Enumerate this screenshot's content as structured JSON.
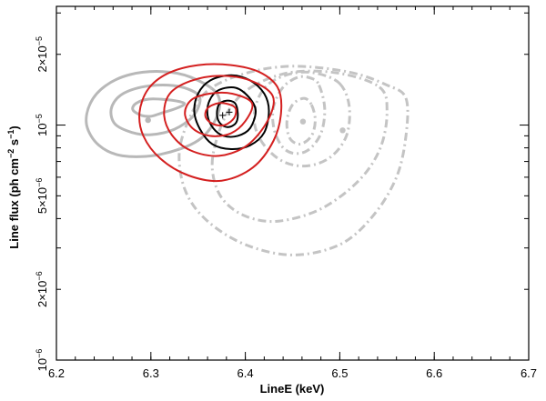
{
  "chart_data": {
    "type": "scatter",
    "title": "",
    "xlabel": "LineE (keV)",
    "ylabel": {
      "prefix": "Line flux (ph cm",
      "exp1": "−2",
      "mid": " s",
      "exp2": "−1",
      "suffix": ")"
    },
    "x_scale": "linear",
    "y_scale": "log",
    "xlim": [
      6.2,
      6.7
    ],
    "ylim": [
      1e-06,
      3.2e-05
    ],
    "x_ticks": [
      {
        "value": 6.2,
        "label": "6.2"
      },
      {
        "value": 6.3,
        "label": "6.3"
      },
      {
        "value": 6.4,
        "label": "6.4"
      },
      {
        "value": 6.5,
        "label": "6.5"
      },
      {
        "value": 6.6,
        "label": "6.6"
      },
      {
        "value": 6.7,
        "label": "6.7"
      }
    ],
    "y_ticks": [
      {
        "value": 1e-06,
        "mant": "",
        "exp": "−6",
        "label": "10−6"
      },
      {
        "value": 2e-06,
        "mant": "2×",
        "exp": "−6",
        "label": "2×10−6"
      },
      {
        "value": 5e-06,
        "mant": "5×",
        "exp": "−6",
        "label": "5×10−6"
      },
      {
        "value": 1e-05,
        "mant": "",
        "exp": "−5",
        "label": "10−5"
      },
      {
        "value": 2e-05,
        "mant": "2×",
        "exp": "−5",
        "label": "2×10−5"
      }
    ],
    "series": [
      {
        "style": "solid",
        "color": "#b8b8b8",
        "width": 3,
        "best_fit": {
          "marker": "dot",
          "x": 6.297,
          "y": 1.05e-05
        },
        "contours": [
          [
            [
              6.335,
              1.22e-05
            ],
            [
              6.326,
              1.175e-05
            ],
            [
              6.31,
              1.12e-05
            ],
            [
              6.3,
              1.09e-05
            ],
            [
              6.29,
              1.1e-05
            ],
            [
              6.281,
              1.16e-05
            ],
            [
              6.284,
              1.235e-05
            ],
            [
              6.298,
              1.29e-05
            ],
            [
              6.318,
              1.28e-05
            ],
            [
              6.333,
              1.25e-05
            ]
          ],
          [
            [
              6.352,
              1.3e-05
            ],
            [
              6.345,
              1.095e-05
            ],
            [
              6.325,
              9.6e-06
            ],
            [
              6.3,
              9.1e-06
            ],
            [
              6.28,
              9.3e-06
            ],
            [
              6.262,
              1.01e-05
            ],
            [
              6.258,
              1.17e-05
            ],
            [
              6.268,
              1.34e-05
            ],
            [
              6.29,
              1.45e-05
            ],
            [
              6.318,
              1.48e-05
            ],
            [
              6.34,
              1.42e-05
            ]
          ],
          [
            [
              6.37,
              1.36e-05
            ],
            [
              6.37,
              1.09e-05
            ],
            [
              6.35,
              8.6e-06
            ],
            [
              6.31,
              7.5e-06
            ],
            [
              6.27,
              7.4e-06
            ],
            [
              6.245,
              8.2e-06
            ],
            [
              6.232,
              1e-05
            ],
            [
              6.236,
              1.24e-05
            ],
            [
              6.252,
              1.47e-05
            ],
            [
              6.278,
              1.64e-05
            ],
            [
              6.312,
              1.69e-05
            ],
            [
              6.342,
              1.6e-05
            ]
          ]
        ]
      },
      {
        "style": "dashdot",
        "color": "#c4c4c4",
        "width": 3,
        "best_fit": {
          "marker": "dot",
          "x": 6.461,
          "y": 1.035e-05
        },
        "best_fit_2": {
          "marker": "dot",
          "x": 6.503,
          "y": 9.5e-06
        },
        "contours": [
          [
            [
              6.47,
              1.22e-05
            ],
            [
              6.474,
              1.05e-05
            ],
            [
              6.47,
              9e-06
            ],
            [
              6.458,
              8.3e-06
            ],
            [
              6.447,
              8.8e-06
            ],
            [
              6.444,
              1.04e-05
            ],
            [
              6.45,
              1.22e-05
            ],
            [
              6.462,
              1.3e-05
            ]
          ],
          [
            [
              6.478,
              1.48e-05
            ],
            [
              6.484,
              1.18e-05
            ],
            [
              6.48,
              9.2e-06
            ],
            [
              6.466,
              7.8e-06
            ],
            [
              6.45,
              7.6e-06
            ],
            [
              6.438,
              8.2e-06
            ],
            [
              6.43,
              9.8e-06
            ],
            [
              6.43,
              1.2e-05
            ],
            [
              6.44,
              1.45e-05
            ],
            [
              6.456,
              1.6e-05
            ],
            [
              6.47,
              1.58e-05
            ]
          ],
          [
            [
              6.5,
              1.5e-05
            ],
            [
              6.51,
              1.2e-05
            ],
            [
              6.507,
              9e-06
            ],
            [
              6.49,
              7.3e-06
            ],
            [
              6.465,
              6.7e-06
            ],
            [
              6.44,
              7e-06
            ],
            [
              6.42,
              8.2e-06
            ],
            [
              6.41,
              1e-05
            ],
            [
              6.412,
              1.25e-05
            ],
            [
              6.425,
              1.5e-05
            ],
            [
              6.45,
              1.66e-05
            ],
            [
              6.476,
              1.66e-05
            ]
          ],
          [
            [
              6.542,
              1.45e-05
            ],
            [
              6.55,
              1.15e-05
            ],
            [
              6.543,
              8e-06
            ],
            [
              6.52,
              5.8e-06
            ],
            [
              6.48,
              4.4e-06
            ],
            [
              6.435,
              3.9e-06
            ],
            [
              6.4,
              4.1e-06
            ],
            [
              6.375,
              4.9e-06
            ],
            [
              6.365,
              6.5e-06
            ],
            [
              6.37,
              8.8e-06
            ],
            [
              6.385,
              1.2e-05
            ],
            [
              6.41,
              1.48e-05
            ],
            [
              6.45,
              1.68e-05
            ],
            [
              6.5,
              1.66e-05
            ]
          ],
          [
            [
              6.57,
              1.3e-05
            ],
            [
              6.57,
              9e-06
            ],
            [
              6.56,
              6e-06
            ],
            [
              6.535,
              4.1e-06
            ],
            [
              6.5,
              3.1e-06
            ],
            [
              6.45,
              2.8e-06
            ],
            [
              6.4,
              3.1e-06
            ],
            [
              6.36,
              3.9e-06
            ],
            [
              6.337,
              5.2e-06
            ],
            [
              6.33,
              7.5e-06
            ],
            [
              6.34,
              1.05e-05
            ],
            [
              6.36,
              1.4e-05
            ],
            [
              6.4,
              1.66e-05
            ],
            [
              6.45,
              1.78e-05
            ],
            [
              6.51,
              1.68e-05
            ],
            [
              6.55,
              1.48e-05
            ]
          ]
        ]
      },
      {
        "style": "solid",
        "color": "#000000",
        "width": 2,
        "best_fit": {
          "marker": "plus",
          "x": 6.383,
          "y": 1.135e-05
        },
        "contours": [
          [
            [
              6.389,
              1.24e-05
            ],
            [
              6.392,
              1.12e-05
            ],
            [
              6.39,
              1.02e-05
            ],
            [
              6.382,
              9.8e-06
            ],
            [
              6.374,
              1.01e-05
            ],
            [
              6.37,
              1.1e-05
            ],
            [
              6.372,
              1.22e-05
            ],
            [
              6.38,
              1.27e-05
            ]
          ],
          [
            [
              6.404,
              1.31e-05
            ],
            [
              6.411,
              1.15e-05
            ],
            [
              6.405,
              9.7e-06
            ],
            [
              6.392,
              9e-06
            ],
            [
              6.377,
              9e-06
            ],
            [
              6.366,
              9.7e-06
            ],
            [
              6.36,
              1.1e-05
            ],
            [
              6.362,
              1.27e-05
            ],
            [
              6.372,
              1.41e-05
            ],
            [
              6.39,
              1.44e-05
            ]
          ],
          [
            [
              6.42,
              1.36e-05
            ],
            [
              6.425,
              1.15e-05
            ],
            [
              6.42,
              9.3e-06
            ],
            [
              6.405,
              8.2e-06
            ],
            [
              6.385,
              7.9e-06
            ],
            [
              6.365,
              8.3e-06
            ],
            [
              6.352,
              9.6e-06
            ],
            [
              6.346,
              1.14e-05
            ],
            [
              6.35,
              1.36e-05
            ],
            [
              6.363,
              1.55e-05
            ],
            [
              6.385,
              1.63e-05
            ],
            [
              6.405,
              1.55e-05
            ]
          ]
        ]
      },
      {
        "style": "solid",
        "color": "#d42020",
        "width": 2,
        "best_fit": {
          "marker": "plus",
          "x": 6.376,
          "y": 1.1e-05
        },
        "contours": [
          [
            [
              6.39,
              1.17e-05
            ],
            [
              6.388,
              1.07e-05
            ],
            [
              6.378,
              1e-05
            ],
            [
              6.366,
              1.01e-05
            ],
            [
              6.358,
              1.08e-05
            ],
            [
              6.36,
              1.18e-05
            ],
            [
              6.372,
              1.24e-05
            ],
            [
              6.384,
              1.22e-05
            ]
          ],
          [
            [
              6.407,
              1.24e-05
            ],
            [
              6.4,
              1.04e-05
            ],
            [
              6.384,
              9.2e-06
            ],
            [
              6.362,
              9e-06
            ],
            [
              6.344,
              9.7e-06
            ],
            [
              6.336,
              1.12e-05
            ],
            [
              6.343,
              1.28e-05
            ],
            [
              6.362,
              1.36e-05
            ],
            [
              6.386,
              1.36e-05
            ]
          ],
          [
            [
              6.429,
              1.33e-05
            ],
            [
              6.424,
              1.05e-05
            ],
            [
              6.402,
              8.2e-06
            ],
            [
              6.372,
              7.4e-06
            ],
            [
              6.342,
              7.8e-06
            ],
            [
              6.322,
              9.1e-06
            ],
            [
              6.314,
              1.11e-05
            ],
            [
              6.32,
              1.36e-05
            ],
            [
              6.342,
              1.54e-05
            ],
            [
              6.373,
              1.62e-05
            ],
            [
              6.405,
              1.55e-05
            ]
          ],
          [
            [
              6.434,
              1.45e-05
            ],
            [
              6.438,
              1.15e-05
            ],
            [
              6.43,
              8.6e-06
            ],
            [
              6.408,
              6.6e-06
            ],
            [
              6.375,
              5.8e-06
            ],
            [
              6.34,
              6.1e-06
            ],
            [
              6.31,
              7.2e-06
            ],
            [
              6.292,
              9e-06
            ],
            [
              6.288,
              1.13e-05
            ],
            [
              6.297,
              1.42e-05
            ],
            [
              6.318,
              1.66e-05
            ],
            [
              6.35,
              1.8e-05
            ],
            [
              6.385,
              1.8e-05
            ],
            [
              6.415,
              1.68e-05
            ]
          ]
        ]
      }
    ],
    "grid": false,
    "legend": "none"
  }
}
